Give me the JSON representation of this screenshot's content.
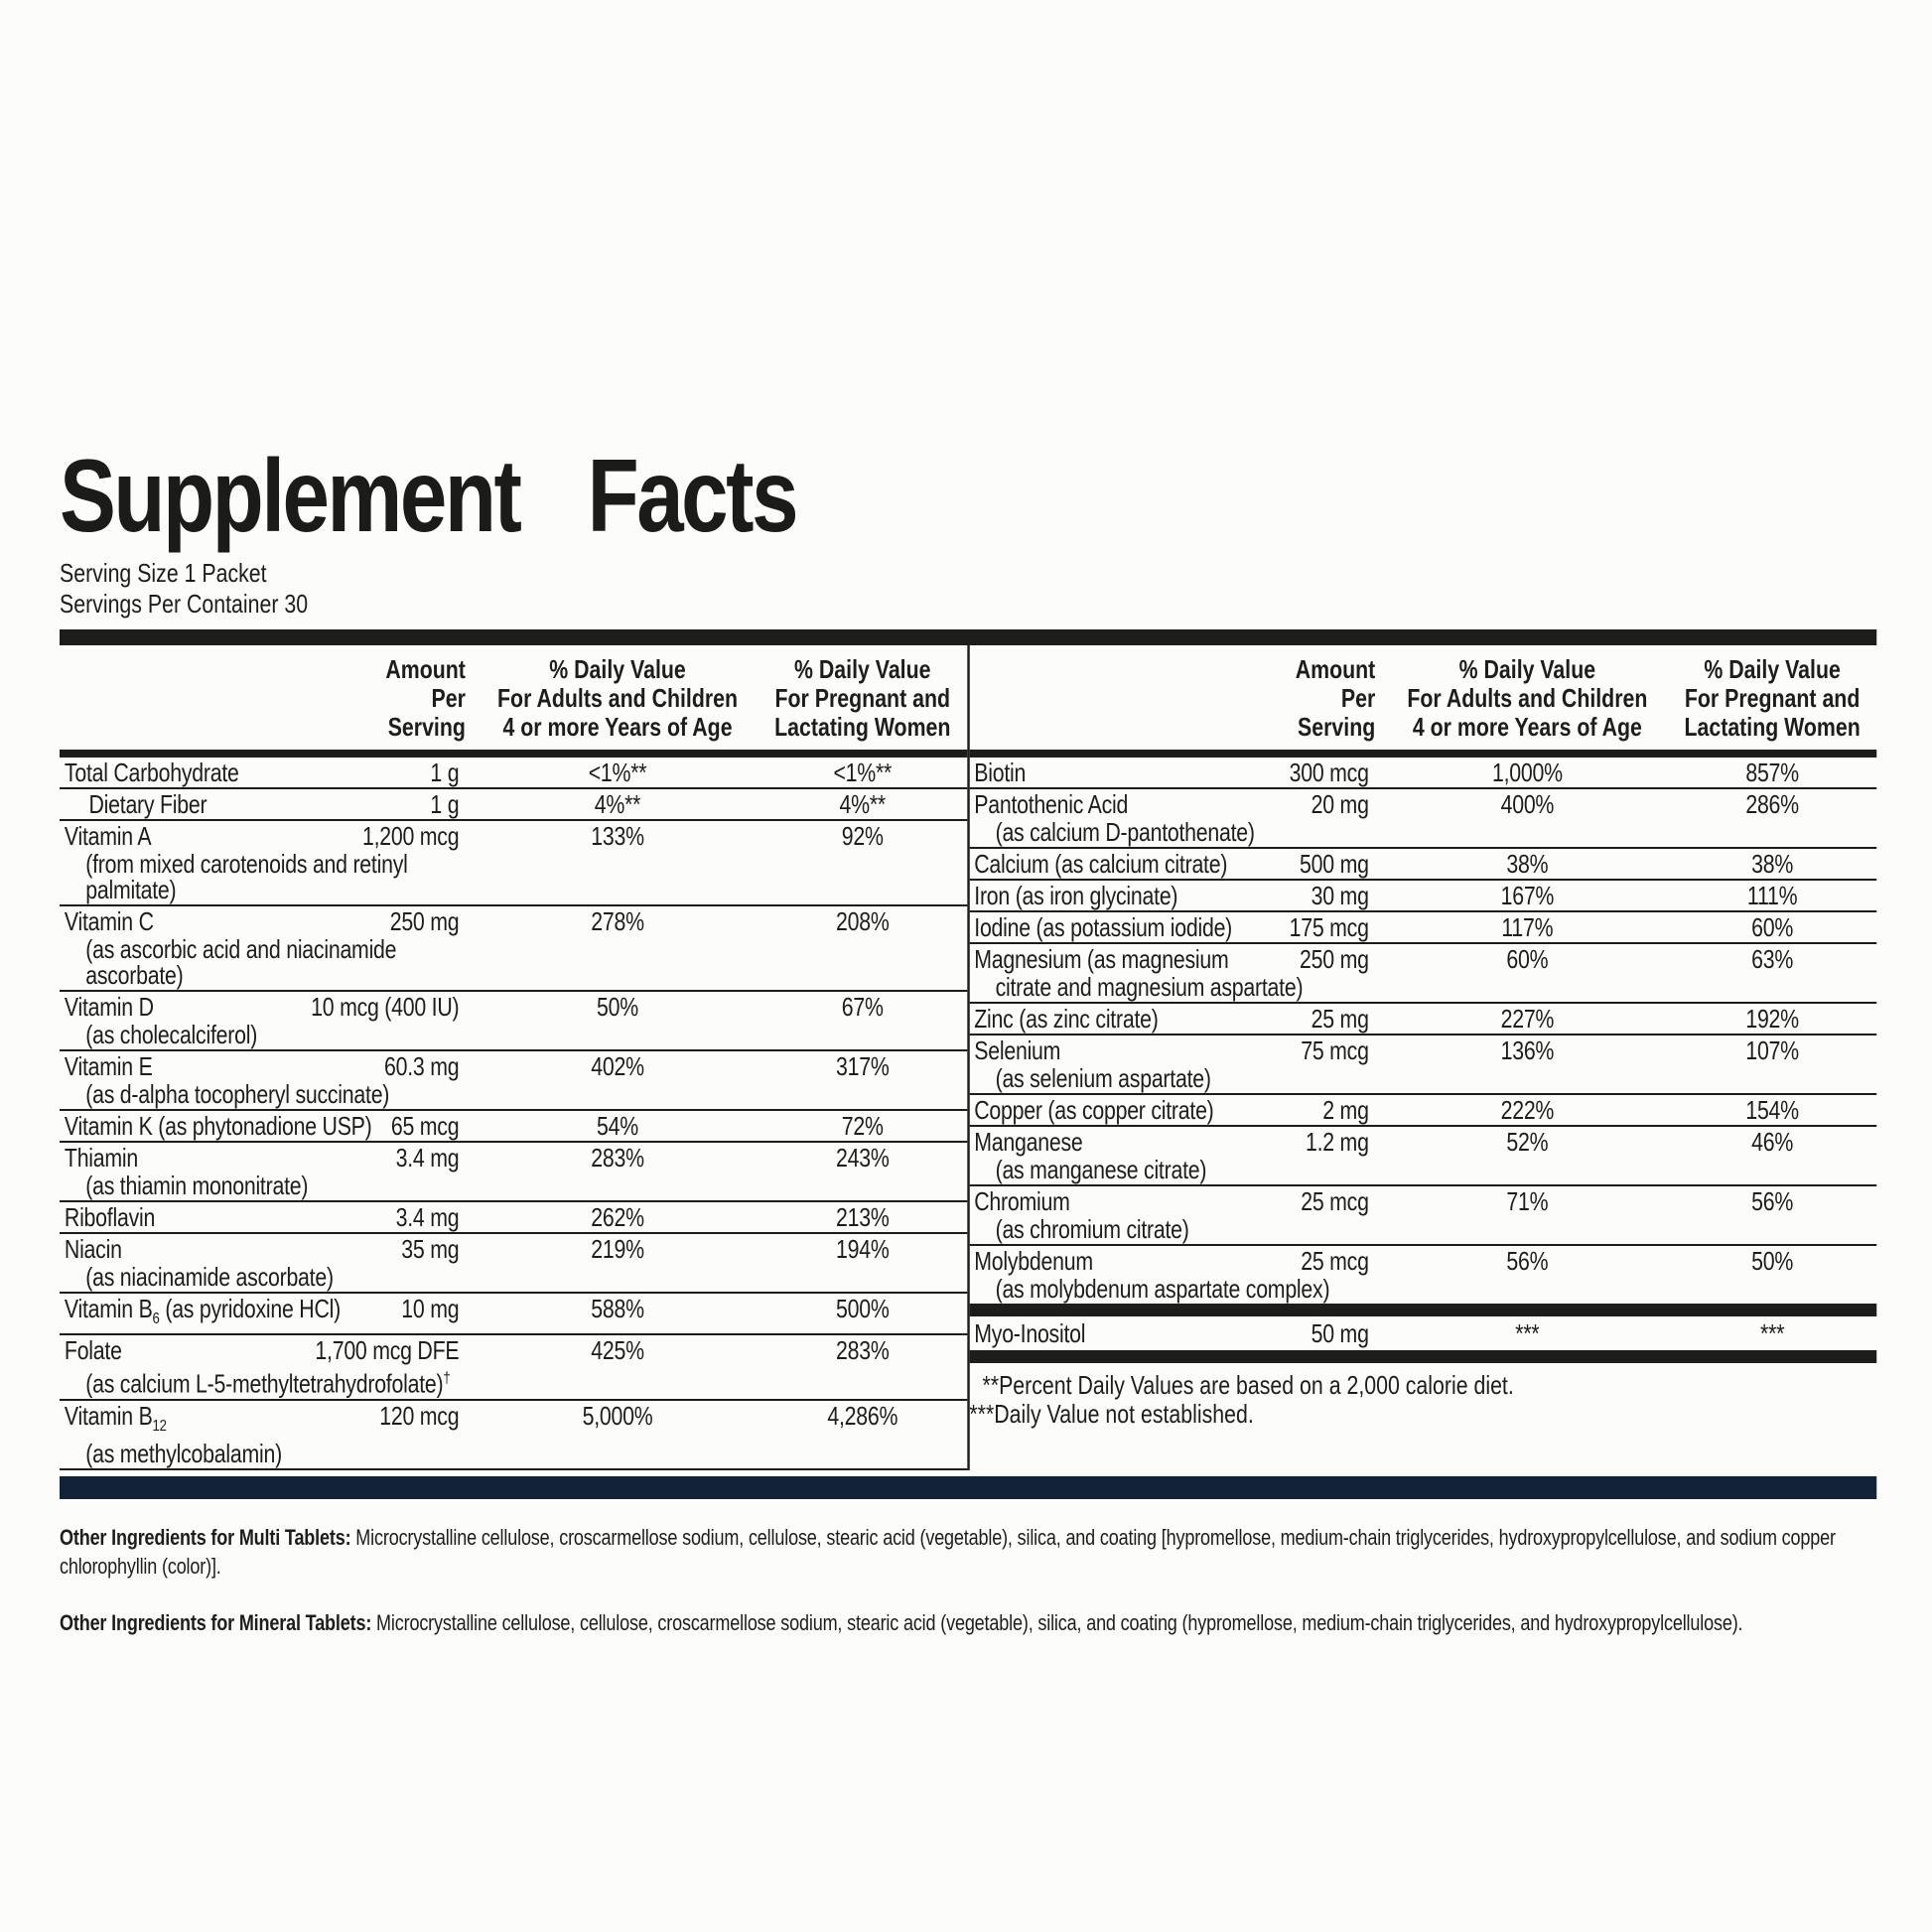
{
  "title": "Supplement Facts",
  "serving": {
    "size": "Serving Size 1 Packet",
    "per_container": "Servings Per Container 30"
  },
  "column_headers": {
    "amount": "Amount\nPer\nServing",
    "dv_adults": "% Daily Value\nFor Adults and Children\n4 or more Years of Age",
    "dv_pregnant": "% Daily Value\nFor Pregnant and\nLactating Women"
  },
  "left_table": {
    "rows": [
      {
        "name": "Total Carbohydrate",
        "amount": "1 g",
        "dv_adults": "<1%**",
        "dv_pregnant": "<1%**"
      },
      {
        "name": "Dietary Fiber",
        "indent": true,
        "amount": "1 g",
        "dv_adults": "4%**",
        "dv_pregnant": "4%**"
      },
      {
        "name": "Vitamin A",
        "amount": "1,200 mcg",
        "dv_adults": "133%",
        "dv_pregnant": "92%",
        "sub": "(from mixed carotenoids and retinyl palmitate)"
      },
      {
        "name": "Vitamin C",
        "amount": "250 mg",
        "dv_adults": "278%",
        "dv_pregnant": "208%",
        "sub": "(as ascorbic acid and niacinamide ascorbate)"
      },
      {
        "name": "Vitamin D",
        "amount": "10 mcg (400 IU)",
        "dv_adults": "50%",
        "dv_pregnant": "67%",
        "sub": "(as cholecalciferol)"
      },
      {
        "name": "Vitamin E",
        "amount": "60.3 mg",
        "dv_adults": "402%",
        "dv_pregnant": "317%",
        "sub": "(as d-alpha tocopheryl succinate)"
      },
      {
        "name": "Vitamin K (as phytonadione USP)",
        "amount": "65 mcg",
        "dv_adults": "54%",
        "dv_pregnant": "72%"
      },
      {
        "name": "Thiamin",
        "amount": "3.4 mg",
        "dv_adults": "283%",
        "dv_pregnant": "243%",
        "sub": "(as thiamin mononitrate)"
      },
      {
        "name": "Riboflavin",
        "amount": "3.4 mg",
        "dv_adults": "262%",
        "dv_pregnant": "213%"
      },
      {
        "name": "Niacin",
        "amount": "35 mg",
        "dv_adults": "219%",
        "dv_pregnant": "194%",
        "sub": "(as niacinamide ascorbate)"
      },
      {
        "name": "Vitamin B~6~ (as pyridoxine HCl)",
        "amount": "10 mg",
        "dv_adults": "588%",
        "dv_pregnant": "500%"
      },
      {
        "name": "Folate",
        "amount": "1,700 mcg DFE",
        "dv_adults": "425%",
        "dv_pregnant": "283%",
        "sub": "(as calcium L-5-methyltetrahydrofolate)^†^"
      },
      {
        "name": "Vitamin B~12~",
        "amount": "120 mcg",
        "dv_adults": "5,000%",
        "dv_pregnant": "4,286%",
        "sub": "(as methylcobalamin)"
      }
    ]
  },
  "right_table": {
    "rows": [
      {
        "name": "Biotin",
        "amount": "300 mcg",
        "dv_adults": "1,000%",
        "dv_pregnant": "857%"
      },
      {
        "name": "Pantothenic Acid",
        "amount": "20 mg",
        "dv_adults": "400%",
        "dv_pregnant": "286%",
        "sub": "(as calcium D-pantothenate)"
      },
      {
        "name": "Calcium (as calcium citrate)",
        "amount": "500 mg",
        "dv_adults": "38%",
        "dv_pregnant": "38%"
      },
      {
        "name": "Iron (as iron glycinate)",
        "amount": "30 mg",
        "dv_adults": "167%",
        "dv_pregnant": "111%"
      },
      {
        "name": "Iodine (as potassium iodide)",
        "amount": "175 mcg",
        "dv_adults": "117%",
        "dv_pregnant": "60%"
      },
      {
        "name": "Magnesium (as magnesium",
        "amount": "250 mg",
        "dv_adults": "60%",
        "dv_pregnant": "63%",
        "sub": "citrate and magnesium aspartate)"
      },
      {
        "name": "Zinc (as zinc citrate)",
        "amount": "25 mg",
        "dv_adults": "227%",
        "dv_pregnant": "192%"
      },
      {
        "name": "Selenium",
        "amount": "75 mcg",
        "dv_adults": "136%",
        "dv_pregnant": "107%",
        "sub": "(as selenium aspartate)"
      },
      {
        "name": "Copper (as copper citrate)",
        "amount": "2 mg",
        "dv_adults": "222%",
        "dv_pregnant": "154%"
      },
      {
        "name": "Manganese",
        "amount": "1.2 mg",
        "dv_adults": "52%",
        "dv_pregnant": "46%",
        "sub": "(as manganese citrate)"
      },
      {
        "name": "Chromium",
        "amount": "25 mcg",
        "dv_adults": "71%",
        "dv_pregnant": "56%",
        "sub": "(as chromium citrate)"
      },
      {
        "name": "Molybdenum",
        "amount": "25 mcg",
        "dv_adults": "56%",
        "dv_pregnant": "50%",
        "sub": "(as molybdenum aspartate complex)"
      }
    ],
    "separated_rows": [
      {
        "name": "Myo-Inositol",
        "amount": "50 mg",
        "dv_adults": "***",
        "dv_pregnant": "***"
      }
    ],
    "footnotes": [
      "**Percent Daily Values are based on a 2,000 calorie diet.",
      "***Daily Value not established."
    ]
  },
  "other_ingredients": [
    {
      "label": "Other Ingredients for Multi Tablets:",
      "text": " Microcrystalline cellulose, croscarmellose sodium, cellulose, stearic acid (vegetable), silica, and coating [hypromellose, medium-chain triglycerides, hydroxypropylcellulose, and sodium copper chlorophyllin (color)]."
    },
    {
      "label": "Other Ingredients for Mineral Tablets:",
      "text": " Microcrystalline cellulose, cellulose, croscarmellose sodium, stearic acid (vegetable), silica, and coating (hypromellose, medium-chain triglycerides, and hydroxypropylcellulose)."
    }
  ],
  "colors": {
    "bar_black": "#1d1d1b",
    "bar_navy": "#122338",
    "text": "#1d1d1b",
    "background": "#fcfcfa"
  }
}
